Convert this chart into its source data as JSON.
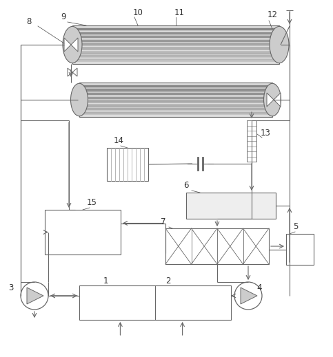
{
  "fig_width": 4.83,
  "fig_height": 5.19,
  "dpi": 100,
  "lc": "#666666",
  "lw": 0.8,
  "tube_stripe_colors": [
    "#888888",
    "#999999",
    "#aaaaaa",
    "#b8b8b8",
    "#cccccc",
    "#b0b0b0",
    "#9a9a9a",
    "#888888",
    "#999999",
    "#aaaaaa"
  ],
  "tube_shell_color": "#cccccc",
  "tube_cap_color": "#bbbbbb"
}
